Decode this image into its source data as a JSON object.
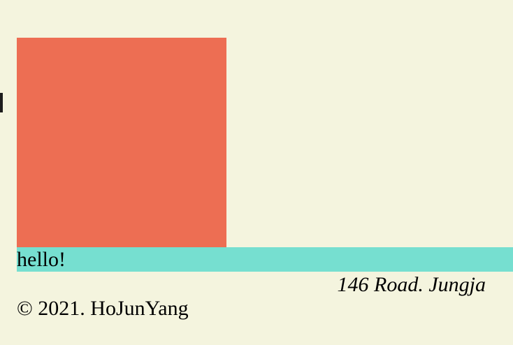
{
  "colors": {
    "background": "#f4f4de",
    "box": "#ed6e53",
    "bar": "#76dfd0",
    "text": "#000000"
  },
  "banner": {
    "text": "hello!"
  },
  "footer": {
    "address": "146 Road. Jungja",
    "copyright": "© 2021. HoJunYang"
  }
}
